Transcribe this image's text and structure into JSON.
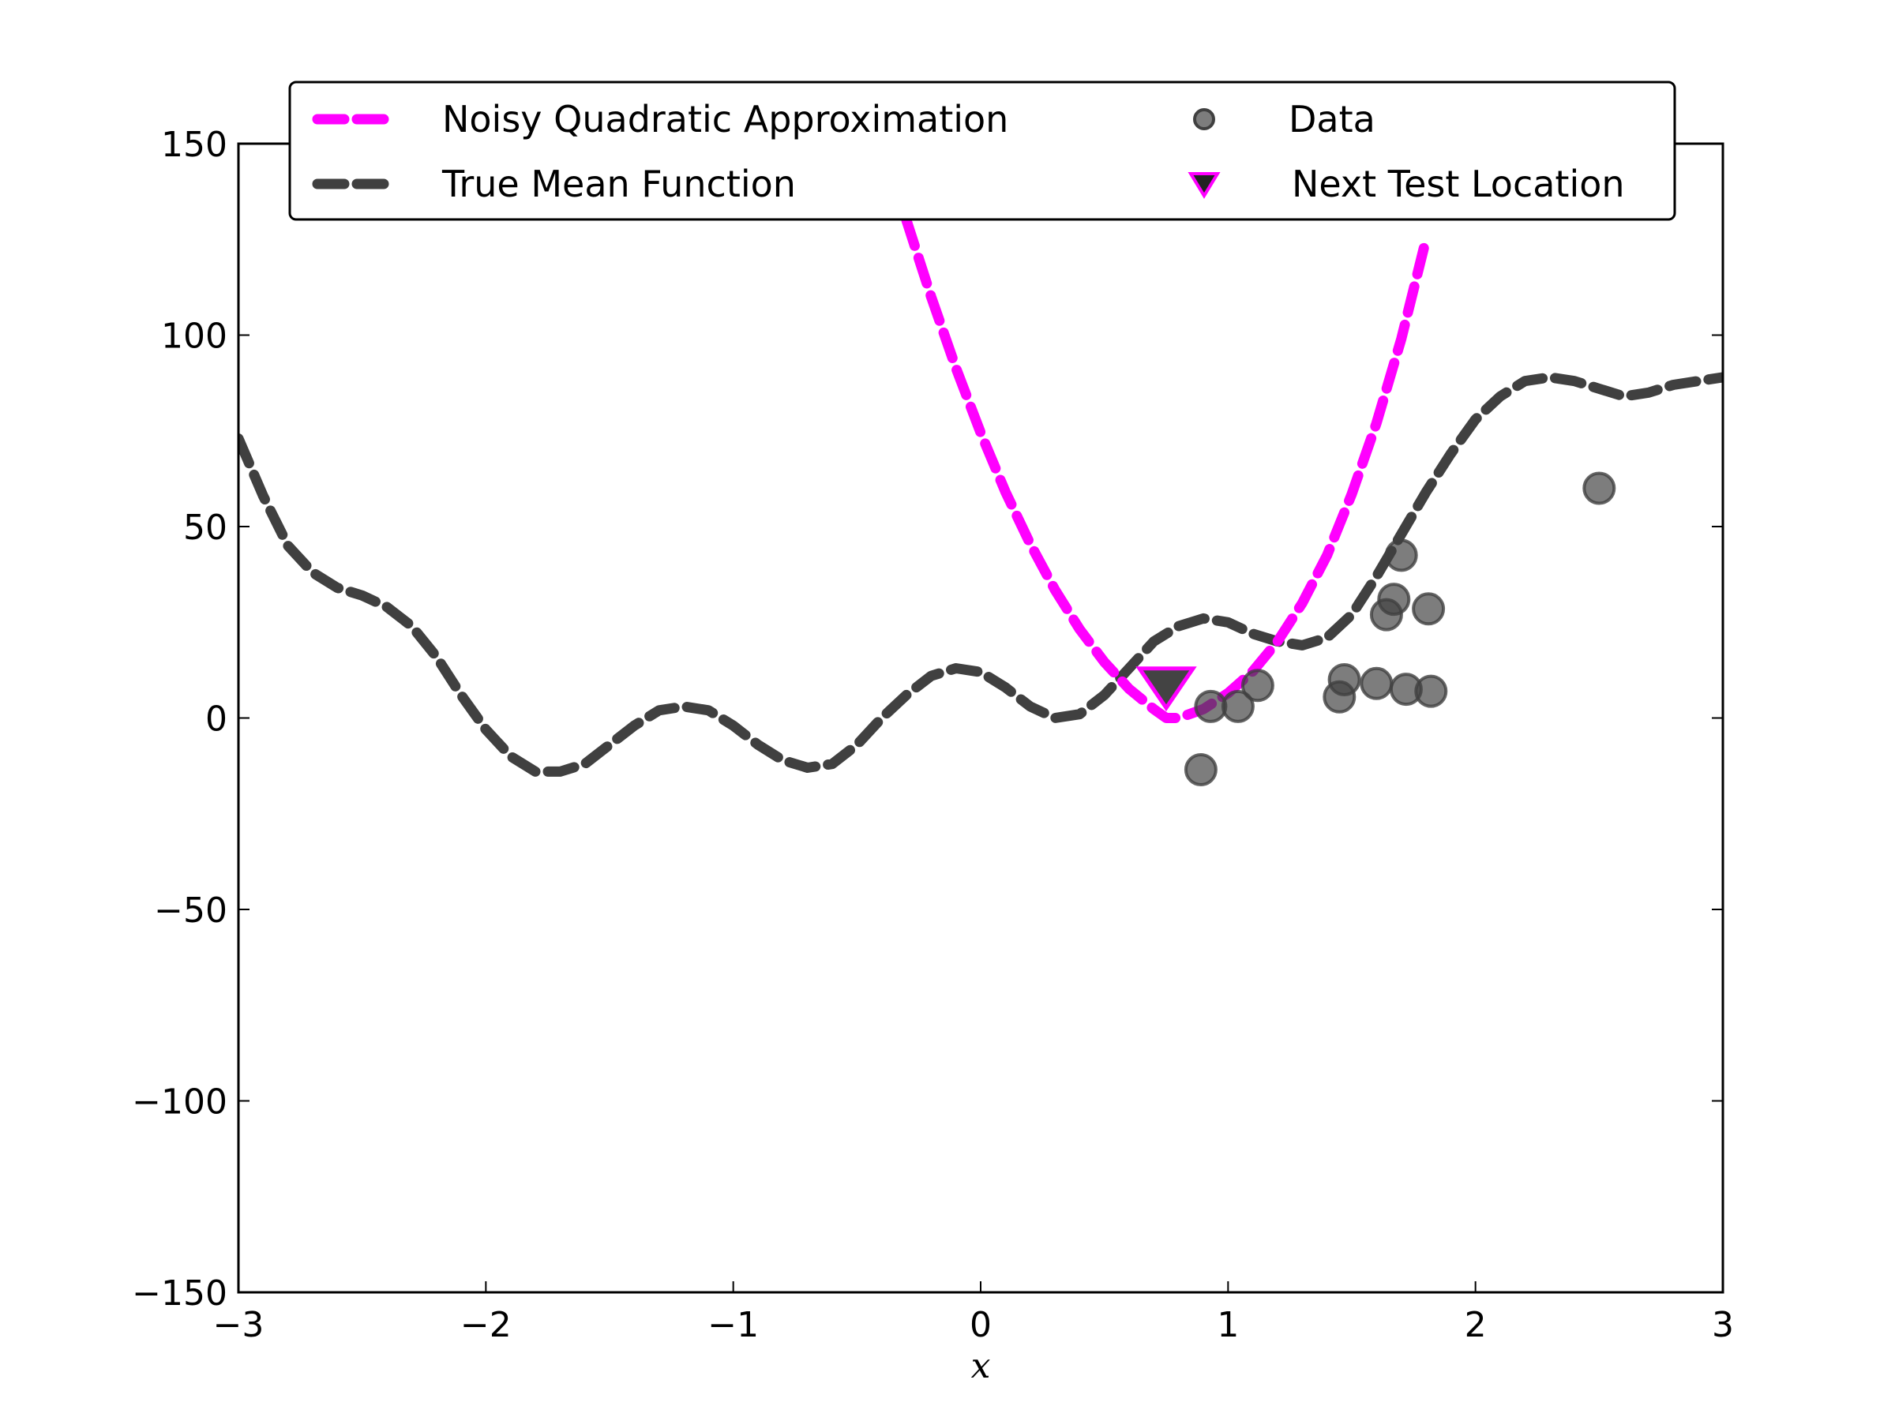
{
  "chart_data": {
    "type": "line",
    "title": "",
    "xlabel": "x",
    "ylabel": "",
    "xlim": [
      -3,
      3
    ],
    "ylim": [
      -150,
      150
    ],
    "xticks": [
      -3,
      -2,
      -1,
      0,
      1,
      2,
      3
    ],
    "yticks": [
      -150,
      -100,
      -50,
      0,
      50,
      100,
      150
    ],
    "xtick_labels": [
      "−3",
      "−2",
      "−1",
      "0",
      "1",
      "2",
      "3"
    ],
    "ytick_labels": [
      "−150",
      "−100",
      "−50",
      "0",
      "50",
      "100",
      "150"
    ],
    "grid": false,
    "legend_position": "top-center",
    "series": [
      {
        "name": "Noisy Quadratic Approximation",
        "kind": "dashed-line",
        "color": "#ff00ff",
        "x": [
          -0.3,
          -0.2,
          -0.1,
          0.0,
          0.1,
          0.2,
          0.3,
          0.4,
          0.5,
          0.6,
          0.7,
          0.75,
          0.8,
          0.9,
          1.0,
          1.1,
          1.2,
          1.3,
          1.4,
          1.5,
          1.6,
          1.7,
          1.8
        ],
        "y": [
          130.0,
          110.0,
          91.4,
          74.5,
          59.1,
          45.5,
          33.5,
          23.2,
          14.6,
          7.6,
          2.3,
          0.0,
          0.0,
          2.3,
          6.5,
          12.2,
          20.0,
          30.0,
          42.5,
          58.5,
          77.0,
          99.0,
          125.0
        ]
      },
      {
        "name": "True Mean Function",
        "kind": "dashed-line",
        "color": "#404040",
        "x": [
          -3.0,
          -2.9,
          -2.8,
          -2.7,
          -2.6,
          -2.5,
          -2.4,
          -2.3,
          -2.2,
          -2.1,
          -2.0,
          -1.9,
          -1.8,
          -1.7,
          -1.6,
          -1.5,
          -1.4,
          -1.3,
          -1.2,
          -1.1,
          -1.0,
          -0.9,
          -0.8,
          -0.7,
          -0.6,
          -0.5,
          -0.4,
          -0.3,
          -0.2,
          -0.1,
          0.0,
          0.1,
          0.2,
          0.3,
          0.4,
          0.5,
          0.6,
          0.7,
          0.8,
          0.9,
          1.0,
          1.1,
          1.2,
          1.3,
          1.4,
          1.5,
          1.6,
          1.7,
          1.8,
          1.9,
          2.0,
          2.1,
          2.2,
          2.3,
          2.4,
          2.5,
          2.6,
          2.7,
          2.8,
          2.9,
          3.0
        ],
        "y": [
          73,
          58,
          45,
          38,
          34,
          32,
          29,
          24,
          16,
          6,
          -3,
          -10,
          -14,
          -14,
          -12,
          -7,
          -2,
          2,
          3,
          2,
          -2,
          -7,
          -11,
          -13,
          -12,
          -7,
          0,
          6,
          11,
          13,
          12,
          8,
          3,
          0,
          1,
          6,
          13,
          20,
          24,
          26,
          25,
          22,
          20,
          19,
          21,
          27,
          37,
          48,
          59,
          69,
          78,
          84,
          88,
          89,
          88,
          86,
          84,
          85,
          87,
          88,
          89
        ]
      },
      {
        "name": "Data",
        "kind": "scatter",
        "color": "#404040",
        "points": [
          {
            "x": 0.89,
            "y": -13.5
          },
          {
            "x": 0.93,
            "y": 3.0
          },
          {
            "x": 1.04,
            "y": 3.0
          },
          {
            "x": 1.12,
            "y": 8.5
          },
          {
            "x": 1.45,
            "y": 5.5
          },
          {
            "x": 1.47,
            "y": 10.0
          },
          {
            "x": 1.6,
            "y": 9.0
          },
          {
            "x": 1.64,
            "y": 27.0
          },
          {
            "x": 1.67,
            "y": 31.0
          },
          {
            "x": 1.7,
            "y": 42.5
          },
          {
            "x": 1.72,
            "y": 7.5
          },
          {
            "x": 1.81,
            "y": 28.5
          },
          {
            "x": 1.82,
            "y": 7.0
          },
          {
            "x": 2.5,
            "y": 60.0
          }
        ]
      },
      {
        "name": "Next Test Location",
        "kind": "marker",
        "color": "#222222",
        "edge_color": "#ff00ff",
        "points": [
          {
            "x": 0.75,
            "y": 8.0
          }
        ]
      }
    ]
  }
}
